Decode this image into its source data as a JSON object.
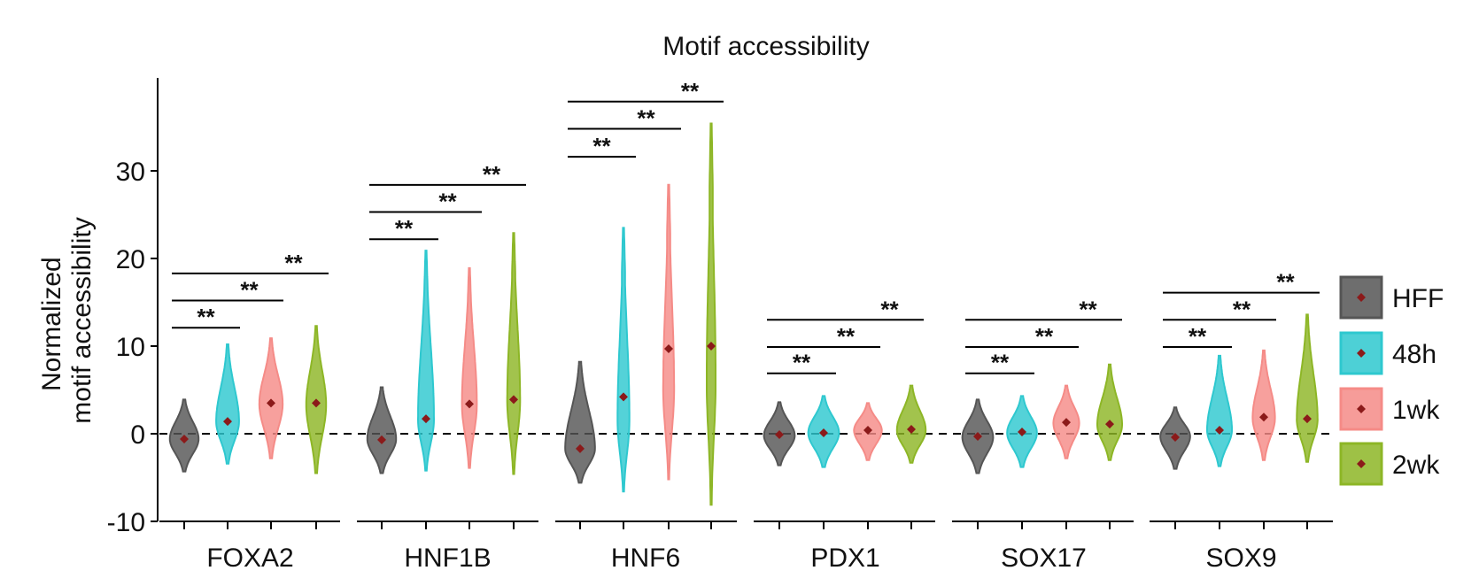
{
  "chart_data": {
    "type": "violin",
    "title": "Motif accessibility",
    "ylabel_lines": [
      "Normalized",
      "motif accessibility"
    ],
    "xlabel": "",
    "ylim": [
      -10,
      40
    ],
    "yticks": [
      -10,
      0,
      10,
      20,
      30
    ],
    "ytick_labels": [
      "-10",
      "0",
      "10",
      "20",
      "30"
    ],
    "reference_line": 0,
    "series": [
      {
        "name": "HFF",
        "color": "#555555"
      },
      {
        "name": "48h",
        "color": "#2ec8cf"
      },
      {
        "name": "1wk",
        "color": "#f58b87"
      },
      {
        "name": "2wk",
        "color": "#8db626"
      }
    ],
    "groups": [
      {
        "label": "FOXA2",
        "violins": [
          {
            "min": -4.3,
            "max": 3.9,
            "mode": -0.6,
            "width": 0.58,
            "mean": -0.6
          },
          {
            "min": -3.4,
            "max": 10.2,
            "mode": 1.4,
            "width": 0.46,
            "mean": 1.4
          },
          {
            "min": -2.8,
            "max": 10.9,
            "mode": 3.4,
            "width": 0.47,
            "mean": 3.5
          },
          {
            "min": -4.5,
            "max": 12.3,
            "mode": 3.3,
            "width": 0.4,
            "mean": 3.5
          }
        ],
        "brackets": [
          {
            "y": 12.1,
            "label": "**"
          },
          {
            "y": 15.2,
            "label": "**"
          },
          {
            "y": 18.3,
            "label": "**"
          }
        ]
      },
      {
        "label": "HNF1B",
        "violins": [
          {
            "min": -4.5,
            "max": 5.3,
            "mode": -0.6,
            "width": 0.58,
            "mean": -0.7
          },
          {
            "min": -4.2,
            "max": 20.9,
            "mode": 1.6,
            "width": 0.32,
            "mean": 1.7
          },
          {
            "min": -3.9,
            "max": 18.9,
            "mode": 3.3,
            "width": 0.3,
            "mean": 3.4
          },
          {
            "min": -4.6,
            "max": 22.9,
            "mode": 3.8,
            "width": 0.26,
            "mean": 3.9
          }
        ],
        "brackets": [
          {
            "y": 22.2,
            "label": "**"
          },
          {
            "y": 25.3,
            "label": "**"
          },
          {
            "y": 28.4,
            "label": "**"
          }
        ]
      },
      {
        "label": "HNF6",
        "violins": [
          {
            "min": -5.6,
            "max": 8.2,
            "mode": -1.7,
            "width": 0.6,
            "mean": -1.7
          },
          {
            "min": -6.6,
            "max": 23.5,
            "mode": 1.5,
            "width": 0.24,
            "mean": 4.2
          },
          {
            "min": -5.2,
            "max": 28.4,
            "mode": 5.0,
            "width": 0.22,
            "mean": 9.7
          },
          {
            "min": -8.1,
            "max": 35.4,
            "mode": 6.0,
            "width": 0.18,
            "mean": 10.0
          }
        ],
        "brackets": [
          {
            "y": 31.6,
            "label": "**"
          },
          {
            "y": 34.8,
            "label": "**"
          },
          {
            "y": 37.9,
            "label": "**"
          }
        ]
      },
      {
        "label": "PDX1",
        "violins": [
          {
            "min": -3.6,
            "max": 3.6,
            "mode": -0.2,
            "width": 0.62,
            "mean": -0.1
          },
          {
            "min": -3.8,
            "max": 4.3,
            "mode": 0.1,
            "width": 0.62,
            "mean": 0.1
          },
          {
            "min": -3.0,
            "max": 3.5,
            "mode": 0.4,
            "width": 0.56,
            "mean": 0.4
          },
          {
            "min": -3.3,
            "max": 5.5,
            "mode": 0.4,
            "width": 0.58,
            "mean": 0.5
          }
        ],
        "brackets": [
          {
            "y": 6.9,
            "label": "**"
          },
          {
            "y": 9.9,
            "label": "**"
          },
          {
            "y": 13.0,
            "label": "**"
          }
        ]
      },
      {
        "label": "SOX17",
        "violins": [
          {
            "min": -4.5,
            "max": 3.9,
            "mode": -0.4,
            "width": 0.62,
            "mean": -0.3
          },
          {
            "min": -3.8,
            "max": 4.3,
            "mode": 0.1,
            "width": 0.6,
            "mean": 0.2
          },
          {
            "min": -2.8,
            "max": 5.5,
            "mode": 1.2,
            "width": 0.52,
            "mean": 1.3
          },
          {
            "min": -3.0,
            "max": 7.9,
            "mode": 1.0,
            "width": 0.5,
            "mean": 1.1
          }
        ],
        "brackets": [
          {
            "y": 6.9,
            "label": "**"
          },
          {
            "y": 9.9,
            "label": "**"
          },
          {
            "y": 13.0,
            "label": "**"
          }
        ]
      },
      {
        "label": "SOX9",
        "violins": [
          {
            "min": -4.0,
            "max": 3.0,
            "mode": -0.3,
            "width": 0.6,
            "mean": -0.4
          },
          {
            "min": -3.7,
            "max": 8.9,
            "mode": 0.4,
            "width": 0.5,
            "mean": 0.4
          },
          {
            "min": -3.0,
            "max": 9.5,
            "mode": 1.8,
            "width": 0.45,
            "mean": 1.9
          },
          {
            "min": -3.2,
            "max": 13.6,
            "mode": 1.6,
            "width": 0.42,
            "mean": 1.7
          }
        ],
        "brackets": [
          {
            "y": 9.9,
            "label": "**"
          },
          {
            "y": 13.0,
            "label": "**"
          },
          {
            "y": 16.1,
            "label": "**"
          }
        ]
      }
    ],
    "legend": {
      "position": "right",
      "entries": [
        "HFF",
        "48h",
        "1wk",
        "2wk"
      ]
    },
    "mean_marker_color": "#8b1a1a",
    "grid": false
  }
}
